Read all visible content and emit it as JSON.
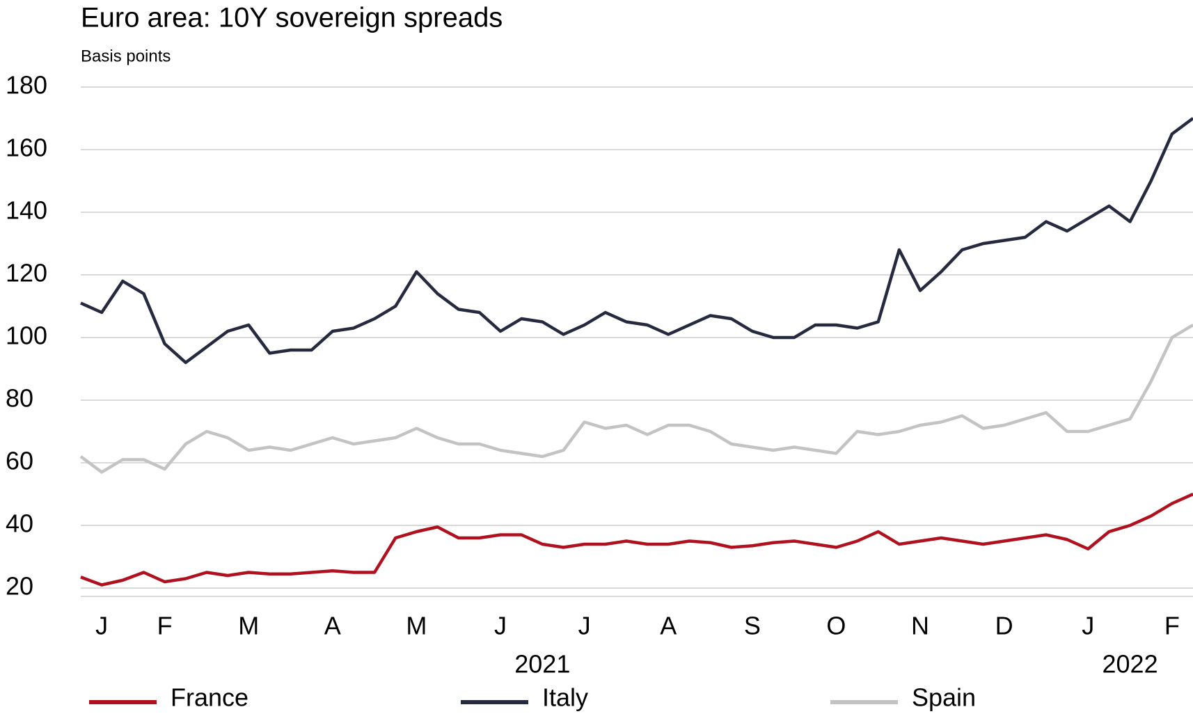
{
  "chart_data": {
    "type": "line",
    "title": "Euro area: 10Y sovereign spreads",
    "subtitle": "Basis points",
    "categories": [
      null,
      "J",
      null,
      null,
      "F",
      null,
      null,
      null,
      "M",
      null,
      null,
      null,
      "A",
      null,
      null,
      null,
      "M",
      null,
      null,
      null,
      "J",
      null,
      null,
      null,
      "J",
      null,
      null,
      null,
      "A",
      null,
      null,
      null,
      "S",
      null,
      null,
      null,
      "O",
      null,
      null,
      null,
      "N",
      null,
      null,
      null,
      "D",
      null,
      null,
      null,
      "J",
      null,
      null,
      null,
      "F",
      null
    ],
    "year_labels": [
      "2021",
      "2022"
    ],
    "series": [
      {
        "name": "France",
        "color": "#b0111f",
        "values": [
          23.5,
          21,
          22.5,
          25,
          22,
          23,
          25,
          24,
          25,
          24.5,
          24.5,
          25,
          25.5,
          25,
          25,
          36,
          38,
          39.5,
          36,
          36,
          37,
          37,
          34,
          33,
          34,
          34,
          35,
          34,
          34,
          35,
          34.5,
          33,
          33.5,
          34.5,
          35,
          34,
          33,
          35,
          38,
          34,
          35,
          36,
          35,
          34,
          35,
          36,
          37,
          35.5,
          32.5,
          38,
          40,
          43,
          47,
          50
        ]
      },
      {
        "name": "Italy",
        "color": "#262a3e",
        "values": [
          111,
          108,
          118,
          114,
          98,
          92,
          97,
          102,
          104,
          95,
          96,
          96,
          102,
          103,
          106,
          110,
          121,
          114,
          109,
          108,
          102,
          106,
          105,
          101,
          104,
          108,
          105,
          104,
          101,
          104,
          107,
          106,
          102,
          100,
          100,
          104,
          104,
          103,
          105,
          128,
          115,
          121,
          128,
          130,
          131,
          132,
          137,
          134,
          138,
          142,
          137,
          150,
          165,
          170
        ]
      },
      {
        "name": "Spain",
        "color": "#c3c3c3",
        "values": [
          62,
          57,
          61,
          61,
          58,
          66,
          70,
          68,
          64,
          65,
          64,
          66,
          68,
          66,
          67,
          68,
          71,
          68,
          66,
          66,
          64,
          63,
          62,
          64,
          73,
          71,
          72,
          69,
          72,
          72,
          70,
          66,
          65,
          64,
          65,
          64,
          63,
          70,
          69,
          70,
          72,
          73,
          75,
          71,
          72,
          74,
          76,
          70,
          70,
          72,
          74,
          86,
          100,
          104
        ]
      }
    ],
    "ylim": [
      20,
      180
    ],
    "yticks": [
      20,
      40,
      60,
      80,
      100,
      120,
      140,
      160,
      180
    ],
    "grid": true,
    "legend": "bottom"
  }
}
